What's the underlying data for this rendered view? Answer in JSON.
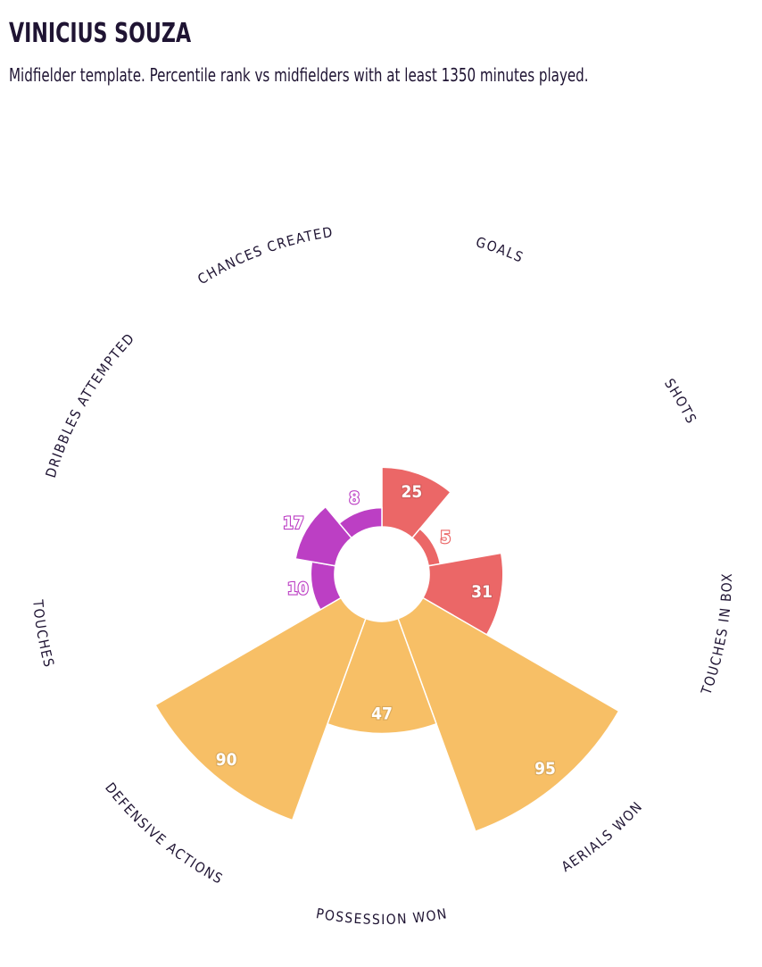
{
  "header": {
    "title": "VINICIUS SOUZA",
    "subtitle": "Midfielder template. Percentile rank vs midfielders with at least 1350 minutes played."
  },
  "colors": {
    "attacking": "#eb6767",
    "defending": "#f7bf66",
    "possession": "#bc3fc4"
  },
  "chart_data": {
    "type": "polar-bar",
    "rlim": [
      0,
      100
    ],
    "categories": [
      "GOALS",
      "SHOTS",
      "TOUCHES IN BOX",
      "AERIALS WON",
      "POSSESSION WON",
      "DEFENSIVE ACTIONS",
      "TOUCHES",
      "DRIBBLES ATTEMPTED",
      "CHANCES CREATED"
    ],
    "values": [
      25,
      5,
      31,
      95,
      47,
      90,
      10,
      17,
      8
    ],
    "groups": [
      "attacking",
      "attacking",
      "attacking",
      "defending",
      "defending",
      "defending",
      "possession",
      "possession",
      "possession"
    ]
  }
}
